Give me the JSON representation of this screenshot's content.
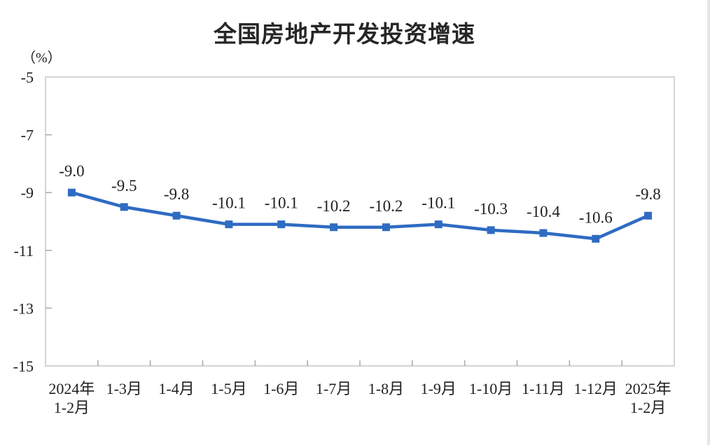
{
  "chart": {
    "title": "全国房地产开发投资增速",
    "y_unit": "（%）"
  },
  "chart_data": {
    "type": "line",
    "title": "全国房地产开发投资增速",
    "ylabel": "（%）",
    "xlabel": "",
    "categories": [
      "2024年\n1-2月",
      "1-3月",
      "1-4月",
      "1-5月",
      "1-6月",
      "1-7月",
      "1-8月",
      "1-9月",
      "1-10月",
      "1-11月",
      "1-12月",
      "2025年\n1-2月"
    ],
    "values": [
      -9.0,
      -9.5,
      -9.8,
      -10.1,
      -10.1,
      -10.2,
      -10.2,
      -10.1,
      -10.3,
      -10.4,
      -10.6,
      -9.8
    ],
    "data_labels": [
      "-9.0",
      "-9.5",
      "-9.8",
      "-10.1",
      "-10.1",
      "-10.2",
      "-10.2",
      "-10.1",
      "-10.3",
      "-10.4",
      "-10.6",
      "-9.8"
    ],
    "ylim": [
      -15,
      -5
    ],
    "y_ticks": [
      -5,
      -7,
      -9,
      -11,
      -13,
      -15
    ],
    "grid": false,
    "legend": "none",
    "marker": "square",
    "series_color": "#2E6BC2",
    "axis_color": "#C9C9C9",
    "tick_color": "#ADADAD",
    "label_color": "#1F1F1F"
  }
}
